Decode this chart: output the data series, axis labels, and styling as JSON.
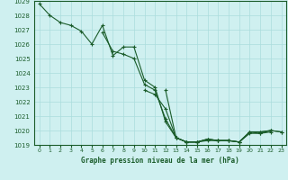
{
  "title": "Graphe pression niveau de la mer (hPa)",
  "background_color": "#cff0f0",
  "grid_color": "#aadddd",
  "line_color": "#1a5c2a",
  "border_color": "#1a5c2a",
  "ylim": [
    1019,
    1029
  ],
  "xlim": [
    0,
    23
  ],
  "yticks": [
    1019,
    1020,
    1021,
    1022,
    1023,
    1024,
    1025,
    1026,
    1027,
    1028,
    1029
  ],
  "xticks": [
    0,
    1,
    2,
    3,
    4,
    5,
    6,
    7,
    8,
    9,
    10,
    11,
    12,
    13,
    14,
    15,
    16,
    17,
    18,
    19,
    20,
    21,
    22,
    23
  ],
  "series": [
    [
      1028.8,
      1028.0,
      1027.5,
      1027.3,
      1026.9,
      1026.0,
      1027.3,
      1025.2,
      1025.8,
      1025.8,
      1023.5,
      1023.0,
      1020.6,
      1019.5,
      1019.2,
      1019.2,
      1019.3,
      1019.3,
      1019.3,
      1019.2,
      1019.8,
      1019.8,
      1019.9,
      null
    ],
    [
      null,
      null,
      null,
      null,
      null,
      null,
      1026.8,
      1025.5,
      1025.3,
      1025.0,
      1023.2,
      1022.8,
      1020.8,
      1019.5,
      1019.2,
      1019.2,
      1019.4,
      1019.3,
      1019.3,
      1019.2,
      1019.9,
      1019.9,
      1020.0,
      null
    ],
    [
      null,
      null,
      null,
      null,
      null,
      null,
      null,
      null,
      null,
      null,
      1022.8,
      1022.5,
      1021.5,
      1019.5,
      1019.2,
      1019.2,
      1019.4,
      1019.3,
      1019.3,
      1019.2,
      1019.9,
      1019.9,
      1020.0,
      1019.9
    ],
    [
      null,
      null,
      null,
      null,
      null,
      null,
      null,
      null,
      null,
      null,
      null,
      null,
      1022.8,
      1019.5,
      1019.2,
      1019.2,
      1019.4,
      1019.3,
      1019.3,
      1019.2,
      1019.9,
      1019.8,
      1020.0,
      1019.9
    ]
  ]
}
